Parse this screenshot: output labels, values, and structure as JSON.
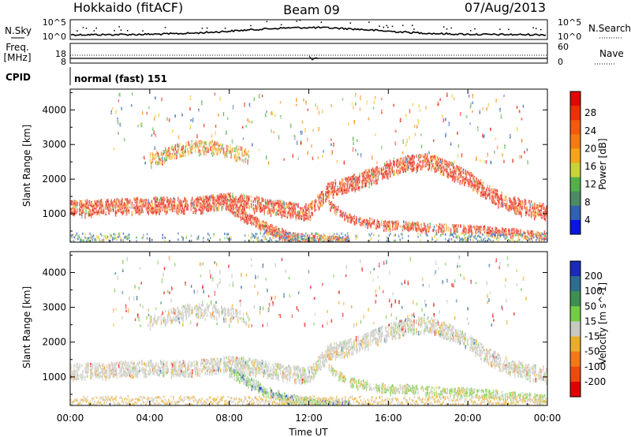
{
  "header": {
    "station": "Hokkaido (fitACF)",
    "beam": "Beam 09",
    "date": "07/Aug/2013"
  },
  "noise_panel": {
    "left_label": "N.Sky",
    "right_label": "N.Search",
    "left_ticks": [
      "10^5",
      "10^0"
    ],
    "right_ticks": [
      "10^5",
      "10^0"
    ]
  },
  "freq_panel": {
    "left_label_1": "Freq.",
    "left_label_2": "[MHz]",
    "left_ticks": [
      "18",
      "8"
    ],
    "right_label": "Nave",
    "right_ticks": [
      "60",
      "0"
    ]
  },
  "cpid": {
    "label": "CPID",
    "value": "normal (fast) 151"
  },
  "colors": {
    "power_scale": [
      "#0a14e6",
      "#2f62b0",
      "#4d8a66",
      "#52b04a",
      "#c8d23a",
      "#f3a51e",
      "#f27b15",
      "#f25a0f",
      "#ef2f0a",
      "#e30606"
    ],
    "velocity_scale": [
      "#1a2bb5",
      "#2d6d8f",
      "#3d8f52",
      "#74cc46",
      "#c8c8c0",
      "#e9ad2c",
      "#f0781a",
      "#ec4a10",
      "#e00000"
    ]
  },
  "chart_data": [
    {
      "type": "heatmap",
      "title": "",
      "xlabel": "",
      "ylabel": "Slant Range [km]",
      "x_ticks": [
        "00:00",
        "04:00",
        "08:00",
        "12:00",
        "16:00",
        "20:00",
        "00:00"
      ],
      "y_ticks": [
        "1000",
        "2000",
        "3000",
        "4000"
      ],
      "xlim": [
        0,
        24
      ],
      "ylim": [
        180,
        4600
      ],
      "colorbar_label": "Power [dB]",
      "colorbar_ticks": [
        "4",
        "8",
        "12",
        "16",
        "20",
        "24",
        "28"
      ],
      "bands": [
        {
          "x": [
            0,
            2,
            4,
            6,
            7,
            8,
            9,
            10,
            11,
            12,
            13,
            14,
            15,
            16,
            17,
            18,
            19,
            20,
            21,
            22,
            23,
            24
          ],
          "y": [
            1200,
            1250,
            1300,
            1280,
            1350,
            1420,
            1350,
            1250,
            1150,
            1100,
            1750,
            1900,
            2100,
            2350,
            2500,
            2550,
            2350,
            2050,
            1650,
            1350,
            1200,
            1100
          ]
        },
        {
          "x": [
            4,
            5,
            6,
            7,
            8,
            9
          ],
          "y": [
            2600,
            2800,
            2950,
            2950,
            2850,
            2700
          ]
        },
        {
          "x": [
            8,
            9,
            10,
            11,
            12,
            13,
            14
          ],
          "y": [
            1200,
            900,
            600,
            400,
            300,
            260,
            250
          ]
        },
        {
          "x": [
            13,
            14,
            15,
            16,
            17,
            18,
            19,
            20,
            21,
            22,
            23,
            24
          ],
          "y": [
            1300,
            900,
            800,
            700,
            700,
            650,
            600,
            600,
            550,
            500,
            450,
            400
          ]
        }
      ]
    },
    {
      "type": "heatmap",
      "title": "",
      "xlabel": "Time UT",
      "ylabel": "Slant Range [km]",
      "x_ticks": [
        "00:00",
        "04:00",
        "08:00",
        "12:00",
        "16:00",
        "20:00",
        "00:00"
      ],
      "y_ticks": [
        "1000",
        "2000",
        "3000",
        "4000"
      ],
      "xlim": [
        0,
        24
      ],
      "ylim": [
        180,
        4600
      ],
      "colorbar_label": "Velocity [m s^-1]",
      "colorbar_ticks": [
        "200",
        "100",
        "50",
        "15",
        "-15",
        "-50",
        "-100",
        "-200"
      ]
    }
  ]
}
